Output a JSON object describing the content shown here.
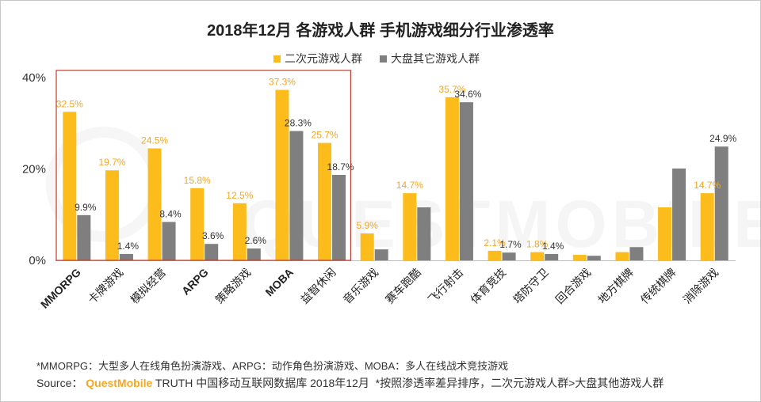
{
  "chart_data": {
    "type": "bar",
    "title": "2018年12月 各游戏人群 手机游戏细分行业渗透率",
    "xlabel": "",
    "ylabel": "",
    "ylim": [
      0,
      40
    ],
    "yticks": [
      "0%",
      "20%",
      "40%"
    ],
    "categories": [
      "MMORPG",
      "卡牌游戏",
      "模拟经营",
      "ARPG",
      "策略游戏",
      "MOBA",
      "益智休闲",
      "音乐游戏",
      "赛车跑酷",
      "飞行射击",
      "体育竞技",
      "塔防守卫",
      "回合游戏",
      "地方棋牌",
      "传统棋牌",
      "消除游戏"
    ],
    "series": [
      {
        "name": "二次元游戏人群",
        "color": "#fbbc1c",
        "values": [
          32.5,
          19.7,
          24.5,
          15.8,
          12.5,
          37.3,
          25.7,
          5.9,
          14.7,
          35.7,
          2.1,
          1.8,
          1.2,
          1.8,
          11.6,
          14.7
        ],
        "labels": [
          "32.5%",
          "19.7%",
          "24.5%",
          "15.8%",
          "12.5%",
          "37.3%",
          "25.7%",
          "5.9%",
          "14.7%",
          "35.7%",
          "2.1%",
          "1.8%",
          "",
          "",
          "",
          "14.7%"
        ]
      },
      {
        "name": "大盘其它游戏人群",
        "color": "#7f7f7f",
        "values": [
          9.9,
          1.4,
          8.4,
          3.6,
          2.6,
          28.3,
          18.7,
          2.4,
          11.6,
          34.6,
          1.7,
          1.4,
          1.0,
          2.9,
          20.1,
          24.9
        ],
        "labels": [
          "9.9%",
          "1.4%",
          "8.4%",
          "3.6%",
          "2.6%",
          "28.3%",
          "18.7%",
          "",
          "",
          "34.6%",
          "1.7%",
          "1.4%",
          "",
          "",
          "",
          "24.9%"
        ]
      }
    ],
    "highlight_box": "MMORPG – 益智休闲",
    "colors": {
      "label_orange": "#f5a623",
      "box_red": "#c0392b",
      "axis": "#bfbfbf"
    }
  },
  "legend": {
    "series0": "二次元游戏人群",
    "series1": "大盘其它游戏人群"
  },
  "footnote": "*MMORPG：大型多人在线角色扮演游戏、ARPG：动作角色扮演游戏、MOBA：多人在线战术竞技游戏",
  "source": {
    "prefix": "Source：",
    "brand": "QuestMobile",
    "rest": " TRUTH 中国移动互联网数据库 2018年12月",
    "note": "*按照渗透率差异排序，二次元游戏人群>大盘其他游戏人群"
  },
  "watermark": "QUESTMOBILE"
}
